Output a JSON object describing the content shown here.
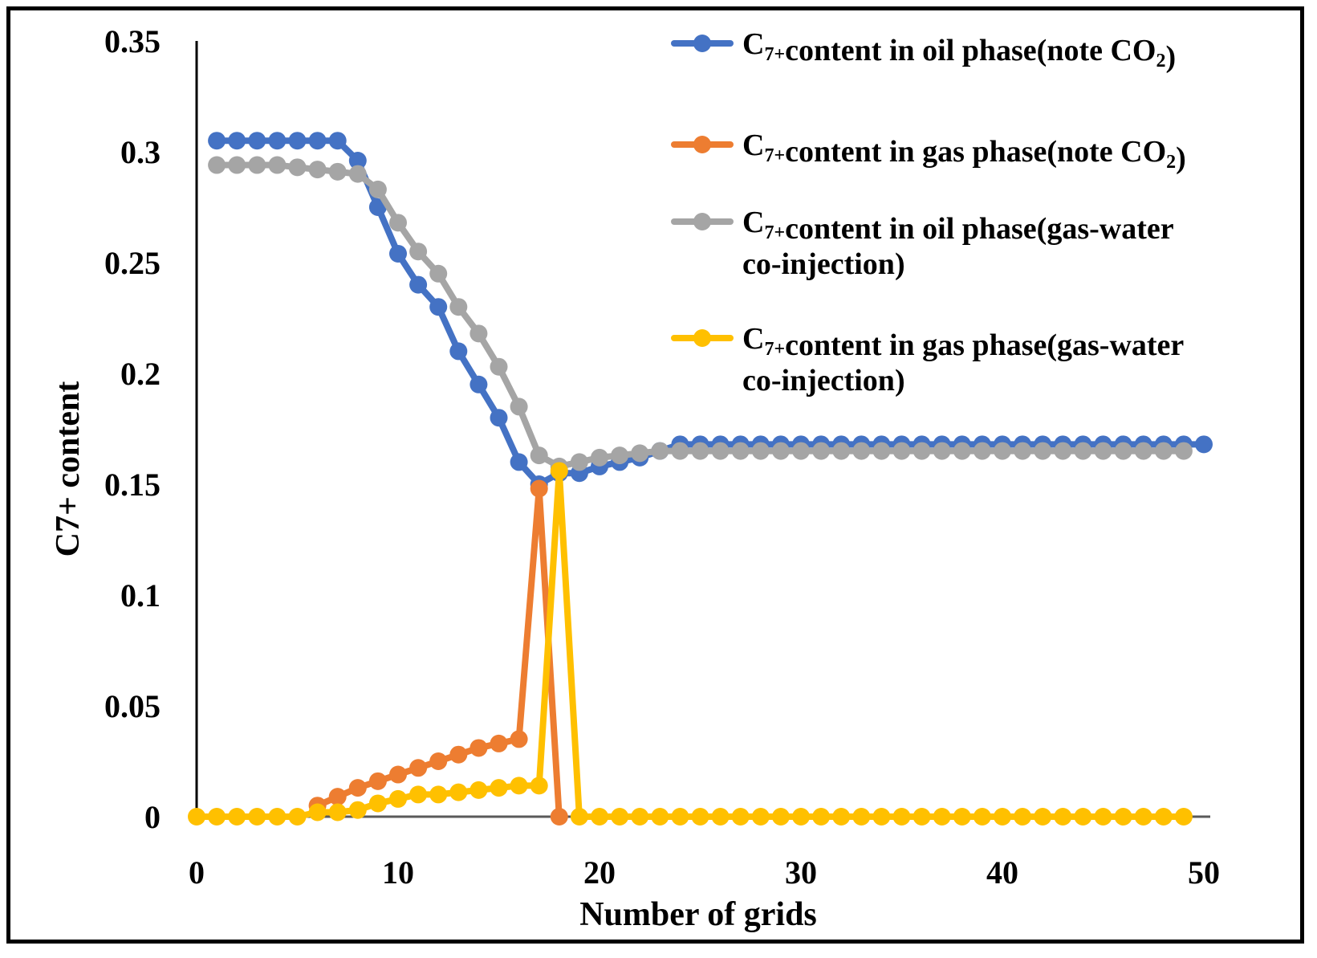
{
  "chart_data": {
    "type": "line",
    "title": "",
    "xlabel": "Number of grids",
    "ylabel": "C7+ content",
    "xlim": [
      0,
      50
    ],
    "ylim": [
      0,
      0.35
    ],
    "x_ticks": [
      "0",
      "10",
      "20",
      "30",
      "40",
      "50"
    ],
    "y_ticks": [
      "0",
      "0.05",
      "0.1",
      "0.15",
      "0.2",
      "0.25",
      "0.3",
      "0.35"
    ],
    "grid": false,
    "legend_position": "top-right",
    "series": [
      {
        "name": "C7+content in oil phase(note CO2)",
        "legend_main": "C",
        "legend_sub": "7+",
        "legend_rest": "content in oil phase(note CO",
        "legend_sub2": "2",
        "legend_end": ")",
        "legend_line2": "",
        "color": "#4472C4",
        "x": [
          1,
          2,
          3,
          4,
          5,
          6,
          7,
          8,
          9,
          10,
          11,
          12,
          13,
          14,
          15,
          16,
          17,
          18,
          19,
          20,
          21,
          22,
          23,
          24,
          25,
          26,
          27,
          28,
          29,
          30,
          31,
          32,
          33,
          34,
          35,
          36,
          37,
          38,
          39,
          40,
          41,
          42,
          43,
          44,
          45,
          46,
          47,
          48,
          49,
          50
        ],
        "y": [
          0.305,
          0.305,
          0.305,
          0.305,
          0.305,
          0.305,
          0.305,
          0.296,
          0.275,
          0.254,
          0.24,
          0.23,
          0.21,
          0.195,
          0.18,
          0.16,
          0.15,
          0.155,
          0.155,
          0.158,
          0.16,
          0.162,
          0.165,
          0.168,
          0.168,
          0.168,
          0.168,
          0.168,
          0.168,
          0.168,
          0.168,
          0.168,
          0.168,
          0.168,
          0.168,
          0.168,
          0.168,
          0.168,
          0.168,
          0.168,
          0.168,
          0.168,
          0.168,
          0.168,
          0.168,
          0.168,
          0.168,
          0.168,
          0.168,
          0.168
        ]
      },
      {
        "name": "C7+content in gas phase(note CO2)",
        "legend_main": "C",
        "legend_sub": "7+",
        "legend_rest": "content in gas phase(note CO",
        "legend_sub2": "2",
        "legend_end": ")",
        "legend_line2": "",
        "color": "#ED7D31",
        "x": [
          6,
          7,
          8,
          9,
          10,
          11,
          12,
          13,
          14,
          15,
          16,
          17,
          18
        ],
        "y": [
          0.005,
          0.009,
          0.013,
          0.016,
          0.019,
          0.022,
          0.025,
          0.028,
          0.031,
          0.033,
          0.035,
          0.148,
          0.0
        ]
      },
      {
        "name": "C7+content in oil phase(gas-water co-injection)",
        "legend_main": "C",
        "legend_sub": "7+",
        "legend_rest": "content in oil phase(gas-water",
        "legend_sub2": "",
        "legend_end": "",
        "legend_line2": "co-injection)",
        "color": "#A5A5A5",
        "x": [
          1,
          2,
          3,
          4,
          5,
          6,
          7,
          8,
          9,
          10,
          11,
          12,
          13,
          14,
          15,
          16,
          17,
          18,
          19,
          20,
          21,
          22,
          23,
          24,
          25,
          26,
          27,
          28,
          29,
          30,
          31,
          32,
          33,
          34,
          35,
          36,
          37,
          38,
          39,
          40,
          41,
          42,
          43,
          44,
          45,
          46,
          47,
          48,
          49
        ],
        "y": [
          0.294,
          0.294,
          0.294,
          0.294,
          0.293,
          0.292,
          0.291,
          0.29,
          0.283,
          0.268,
          0.255,
          0.245,
          0.23,
          0.218,
          0.203,
          0.185,
          0.163,
          0.158,
          0.16,
          0.162,
          0.163,
          0.164,
          0.165,
          0.165,
          0.165,
          0.165,
          0.165,
          0.165,
          0.165,
          0.165,
          0.165,
          0.165,
          0.165,
          0.165,
          0.165,
          0.165,
          0.165,
          0.165,
          0.165,
          0.165,
          0.165,
          0.165,
          0.165,
          0.165,
          0.165,
          0.165,
          0.165,
          0.165,
          0.165
        ]
      },
      {
        "name": "C7+content in gas phase(gas-water co-injection)",
        "legend_main": "C",
        "legend_sub": "7+",
        "legend_rest": "content in gas phase(gas-water",
        "legend_sub2": "",
        "legend_end": "",
        "legend_line2": "co-injection)",
        "color": "#FFC000",
        "x": [
          0,
          1,
          2,
          3,
          4,
          5,
          6,
          7,
          8,
          9,
          10,
          11,
          12,
          13,
          14,
          15,
          16,
          17,
          18,
          19,
          20,
          21,
          22,
          23,
          24,
          25,
          26,
          27,
          28,
          29,
          30,
          31,
          32,
          33,
          34,
          35,
          36,
          37,
          38,
          39,
          40,
          41,
          42,
          43,
          44,
          45,
          46,
          47,
          48,
          49
        ],
        "y": [
          0,
          0,
          0,
          0,
          0,
          0,
          0.002,
          0.002,
          0.003,
          0.006,
          0.008,
          0.01,
          0.01,
          0.011,
          0.012,
          0.013,
          0.014,
          0.014,
          0.156,
          0,
          0,
          0,
          0,
          0,
          0,
          0,
          0,
          0,
          0,
          0,
          0,
          0,
          0,
          0,
          0,
          0,
          0,
          0,
          0,
          0,
          0,
          0,
          0,
          0,
          0,
          0,
          0,
          0,
          0,
          0
        ]
      }
    ]
  }
}
